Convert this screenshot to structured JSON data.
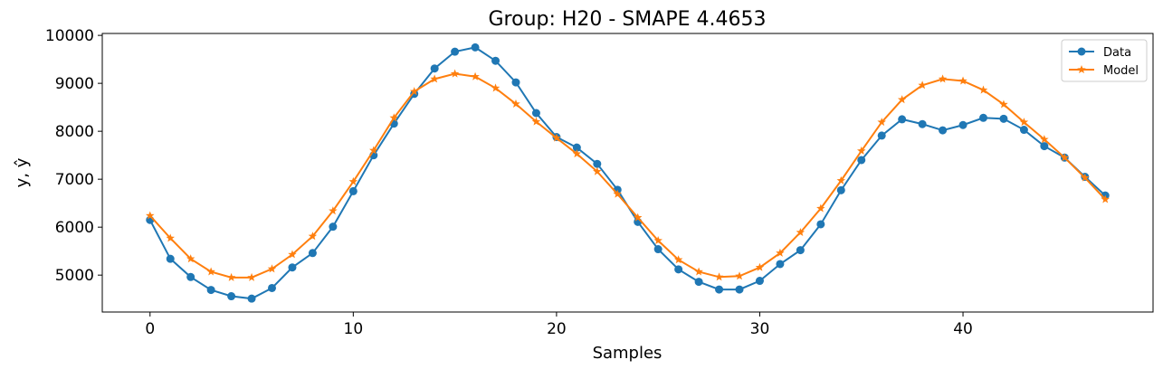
{
  "chart_data": {
    "type": "line",
    "title": "Group: H20 - SMAPE 4.4653",
    "xlabel": "Samples",
    "ylabel": "y, ŷ",
    "xlim": [
      -2.35,
      49.35
    ],
    "ylim": [
      4230,
      10040
    ],
    "x_ticks": [
      0,
      10,
      20,
      30,
      40
    ],
    "y_ticks": [
      5000,
      6000,
      7000,
      8000,
      9000,
      10000
    ],
    "grid": false,
    "legend": {
      "placement": "top-right"
    },
    "x": [
      0,
      1,
      2,
      3,
      4,
      5,
      6,
      7,
      8,
      9,
      10,
      11,
      12,
      13,
      14,
      15,
      16,
      17,
      18,
      19,
      20,
      21,
      22,
      23,
      24,
      25,
      26,
      27,
      28,
      29,
      30,
      31,
      32,
      33,
      34,
      35,
      36,
      37,
      38,
      39,
      40,
      41,
      42,
      43,
      44,
      45,
      46,
      47
    ],
    "series": [
      {
        "name": "Data",
        "color": "#1f77b4",
        "marker": "circle",
        "values": [
          6150,
          5340,
          4960,
          4690,
          4560,
          4510,
          4730,
          5160,
          5460,
          6010,
          6750,
          7500,
          8160,
          8780,
          9310,
          9660,
          9750,
          9470,
          9020,
          8380,
          7880,
          7660,
          7320,
          6780,
          6110,
          5540,
          5120,
          4860,
          4700,
          4700,
          4880,
          5230,
          5520,
          6060,
          6770,
          7400,
          7910,
          8250,
          8150,
          8020,
          8130,
          8280,
          8260,
          8030,
          7690,
          7450,
          7050,
          6660
        ]
      },
      {
        "name": "Model",
        "color": "#ff7f0e",
        "marker": "star",
        "values": [
          6240,
          5770,
          5340,
          5070,
          4950,
          4950,
          5130,
          5430,
          5810,
          6340,
          6950,
          7600,
          8280,
          8830,
          9090,
          9200,
          9140,
          8900,
          8570,
          8200,
          7860,
          7530,
          7160,
          6690,
          6200,
          5720,
          5320,
          5070,
          4960,
          4980,
          5160,
          5460,
          5890,
          6390,
          6970,
          7590,
          8190,
          8660,
          8960,
          9090,
          9050,
          8860,
          8560,
          8190,
          7830,
          7450,
          7030,
          6580
        ]
      }
    ]
  }
}
